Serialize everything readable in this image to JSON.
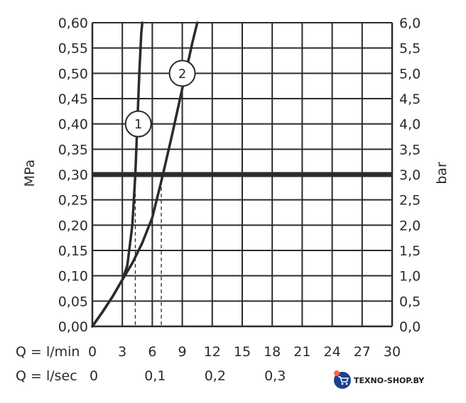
{
  "chart_data": {
    "type": "line",
    "xlabel": "Q = l/min",
    "secondary_xlabel": "Q = l/sec",
    "ylabel": "MPa",
    "secondary_ylabel": "bar",
    "xlim": [
      0,
      30
    ],
    "ylim": [
      0,
      0.6
    ],
    "grid": true,
    "x_ticks": [
      "0",
      "3",
      "6",
      "9",
      "12",
      "15",
      "18",
      "21",
      "24",
      "27",
      "30"
    ],
    "x_ticks_sec": [
      {
        "label": "0",
        "value": 0
      },
      {
        "label": "0,1",
        "value": 6
      },
      {
        "label": "0,2",
        "value": 12
      },
      {
        "label": "0,3",
        "value": 18
      }
    ],
    "y_ticks_left": [
      "0,00",
      "0,05",
      "0,10",
      "0,15",
      "0,20",
      "0,25",
      "0,30",
      "0,35",
      "0,40",
      "0,45",
      "0,50",
      "0,55",
      "0,60"
    ],
    "y_ticks_right": [
      "0,0",
      "0,5",
      "1,0",
      "1,5",
      "2,0",
      "2,5",
      "3,0",
      "3,5",
      "4,0",
      "4,5",
      "5,0",
      "5,5",
      "6,0"
    ],
    "reference_line": {
      "y": 0.3
    },
    "series": [
      {
        "name": "1",
        "x": [
          0,
          1,
          2,
          3,
          3.5,
          4.0,
          4.3,
          4.5,
          4.7,
          4.9,
          5.0
        ],
        "y": [
          0.0,
          0.028,
          0.058,
          0.092,
          0.12,
          0.2,
          0.3,
          0.4,
          0.5,
          0.58,
          0.6
        ]
      },
      {
        "name": "2",
        "x": [
          0,
          1,
          2,
          3,
          4,
          5,
          6,
          7,
          8,
          9,
          10,
          10.5
        ],
        "y": [
          0.0,
          0.028,
          0.058,
          0.092,
          0.125,
          0.165,
          0.215,
          0.295,
          0.38,
          0.47,
          0.56,
          0.6
        ]
      }
    ],
    "drop_lines": [
      {
        "series": "1",
        "x": 4.3,
        "y": 0.3
      },
      {
        "series": "2",
        "x": 6.9,
        "y": 0.3
      }
    ],
    "curve_labels": [
      {
        "text": "1",
        "x": 4.6,
        "y": 0.4
      },
      {
        "text": "2",
        "x": 9.0,
        "y": 0.5
      }
    ]
  },
  "watermark": {
    "text": "TEXNO-SHOP.BY"
  }
}
